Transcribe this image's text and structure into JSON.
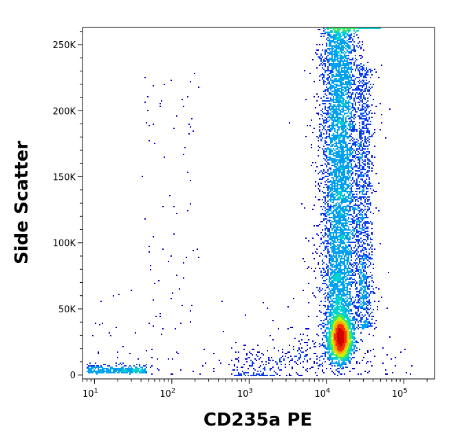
{
  "chart_data": {
    "type": "scatter",
    "plot_style": "density-colored flow cytometry dot plot",
    "xlabel": "CD235a PE",
    "ylabel": "Side Scatter",
    "x_scale": "log",
    "xlim": [
      7,
      250000
    ],
    "ylim": [
      -3000,
      263000
    ],
    "x_ticks": [
      {
        "value": 10,
        "base": "10",
        "exp": "1"
      },
      {
        "value": 100,
        "base": "10",
        "exp": "2"
      },
      {
        "value": 1000,
        "base": "10",
        "exp": "3"
      },
      {
        "value": 10000,
        "base": "10",
        "exp": "4"
      },
      {
        "value": 100000,
        "base": "10",
        "exp": "5"
      }
    ],
    "y_ticks": [
      {
        "value": 0,
        "label": "0"
      },
      {
        "value": 50000,
        "label": "50K"
      },
      {
        "value": 100000,
        "label": "100K"
      },
      {
        "value": 150000,
        "label": "150K"
      },
      {
        "value": 200000,
        "label": "200K"
      },
      {
        "value": 250000,
        "label": "250K"
      }
    ],
    "density_colors": [
      "#0000cd",
      "#0a3cf0",
      "#00a2f0",
      "#00d2d2",
      "#3ce66e",
      "#c8f000",
      "#ffaa00",
      "#f03200",
      "#d20000"
    ],
    "populations": [
      {
        "name": "main-core",
        "center_x": 15000,
        "center_y": 28000,
        "spread_log10": 0.07,
        "spread_y": 8000
      },
      {
        "name": "main-column",
        "x_range_log10": [
          3.85,
          4.3
        ],
        "y_range": [
          10000,
          262000
        ]
      },
      {
        "name": "side-column",
        "center_x": 30000,
        "y_range": [
          35000,
          230000
        ]
      },
      {
        "name": "low-cluster",
        "x_range": [
          8,
          50
        ],
        "y_range": [
          0,
          6000
        ]
      },
      {
        "name": "mid-scatter",
        "x_range": [
          40,
          200
        ],
        "y_range": [
          30000,
          230000
        ]
      }
    ],
    "grid": false,
    "legend": "none"
  }
}
